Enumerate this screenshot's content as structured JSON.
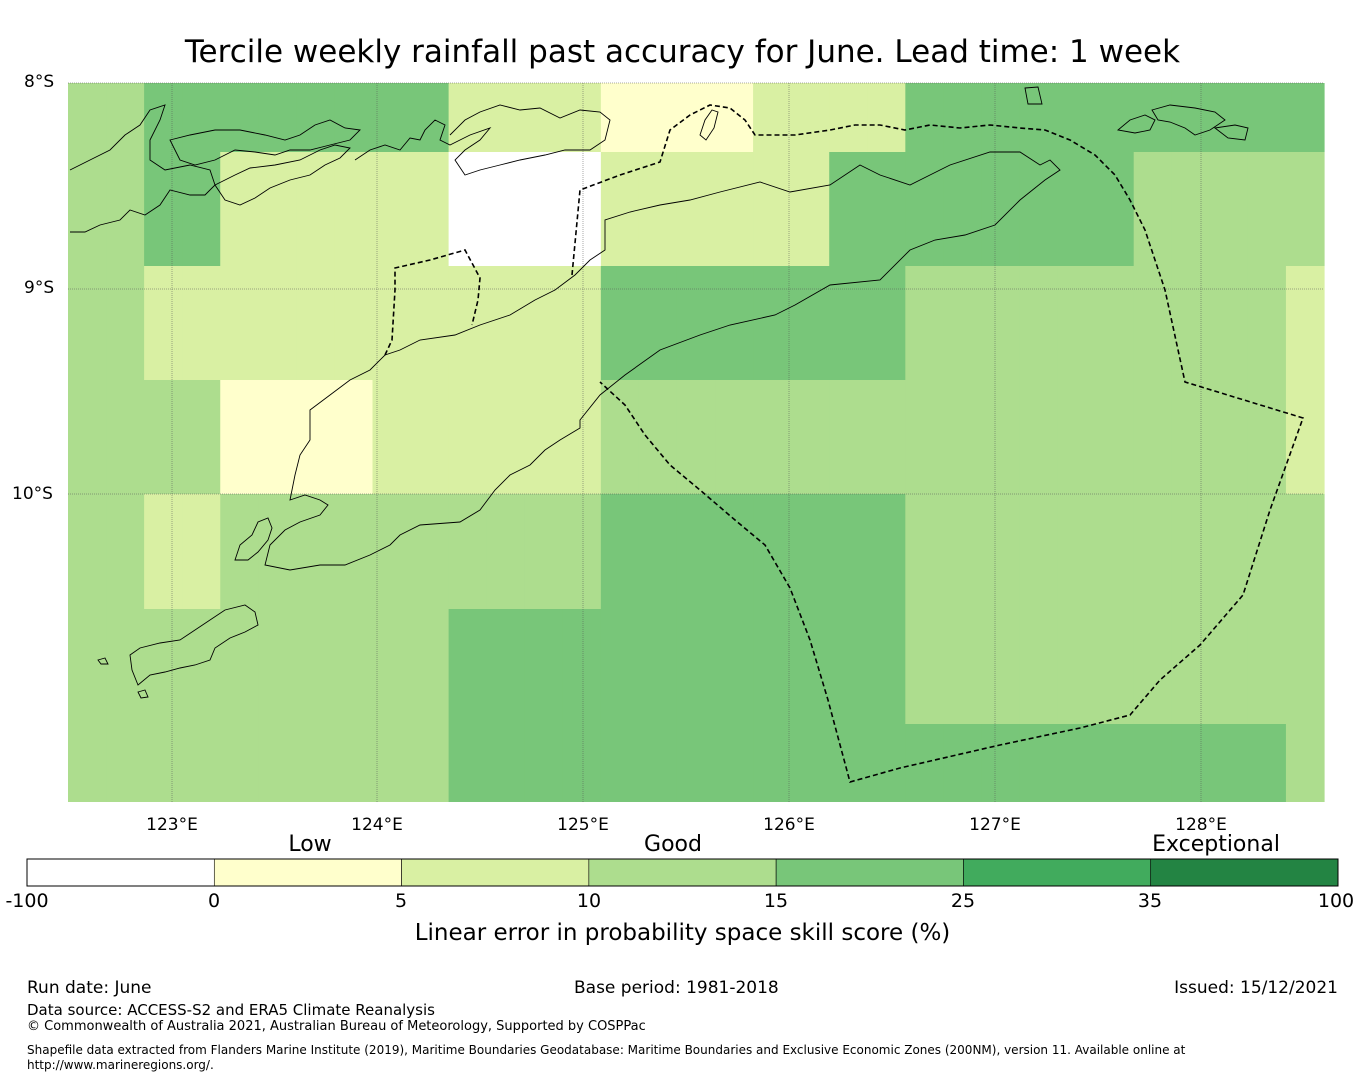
{
  "title": "Tercile weekly rainfall past accuracy for June. Lead time: 1 week",
  "map": {
    "lat_labels": [
      "8°S",
      "9°S",
      "10°S"
    ],
    "lon_labels": [
      "123°E",
      "124°E",
      "125°E",
      "126°E",
      "127°E",
      "128°E"
    ],
    "lat_range": [
      -11.5,
      -8.0
    ],
    "lon_range": [
      122.5,
      128.6
    ],
    "gridlines": true,
    "colors": [
      "#ffffff",
      "#ffffcc",
      "#d9f0a3",
      "#addd8e",
      "#78c679",
      "#41ab5d",
      "#238443"
    ],
    "cells": [
      [
        3,
        3,
        4,
        4,
        4,
        4,
        4,
        4,
        4,
        4,
        2,
        2,
        2,
        2,
        1,
        1,
        1,
        1,
        2,
        2,
        2,
        2,
        4,
        4,
        4,
        4,
        4,
        4,
        4,
        4,
        4,
        4,
        4
      ],
      [
        3,
        3,
        4,
        4,
        2,
        2,
        2,
        2,
        2,
        2,
        0,
        0,
        0,
        0,
        2,
        2,
        2,
        2,
        2,
        2,
        4,
        4,
        4,
        4,
        4,
        4,
        4,
        4,
        3,
        3,
        3,
        3,
        3
      ],
      [
        3,
        3,
        2,
        2,
        2,
        2,
        2,
        2,
        2,
        2,
        2,
        2,
        2,
        2,
        4,
        4,
        4,
        4,
        4,
        4,
        4,
        4,
        3,
        3,
        3,
        3,
        3,
        3,
        3,
        3,
        3,
        3,
        2
      ],
      [
        3,
        3,
        3,
        3,
        1,
        1,
        1,
        1,
        2,
        2,
        2,
        2,
        2,
        2,
        3,
        3,
        3,
        3,
        3,
        3,
        3,
        3,
        3,
        3,
        3,
        3,
        3,
        3,
        3,
        3,
        3,
        3,
        2
      ],
      [
        3,
        3,
        2,
        2,
        3,
        3,
        3,
        3,
        3,
        3,
        3,
        3,
        3,
        3,
        4,
        4,
        4,
        4,
        4,
        4,
        4,
        4,
        3,
        3,
        3,
        3,
        3,
        3,
        3,
        3,
        3,
        3,
        3
      ],
      [
        3,
        3,
        3,
        3,
        3,
        3,
        3,
        3,
        3,
        3,
        4,
        4,
        4,
        4,
        4,
        4,
        4,
        4,
        4,
        4,
        4,
        4,
        3,
        3,
        3,
        3,
        3,
        3,
        3,
        3,
        3,
        3,
        3
      ],
      [
        3,
        3,
        3,
        3,
        3,
        3,
        3,
        3,
        3,
        3,
        4,
        4,
        4,
        4,
        4,
        4,
        4,
        4,
        4,
        4,
        4,
        4,
        4,
        4,
        4,
        4,
        4,
        4,
        4,
        4,
        4,
        4,
        3
      ]
    ],
    "cell_rows_note": ""
  },
  "colorbar": {
    "categories": [
      {
        "label": "Low",
        "at": 2.5
      },
      {
        "label": "Good",
        "at": 4.5
      },
      {
        "label": "Exceptional",
        "at": 6.5
      }
    ],
    "ticks": [
      "-100",
      "0",
      "5",
      "10",
      "15",
      "25",
      "35",
      "100"
    ],
    "colors": [
      "#ffffff",
      "#ffffcc",
      "#d9f0a3",
      "#addd8e",
      "#78c679",
      "#41ab5d",
      "#238443"
    ],
    "label": "Linear error in probability space skill score (%)"
  },
  "footer": {
    "run_date": "Run date: June",
    "base_period": "Base period: 1981-2018",
    "issued": "Issued: 15/12/2021",
    "data_source": "Data source: ACCESS-S2 and ERA5 Climate Reanalysis",
    "copyright": "© Commonwealth of Australia 2021, Australian Bureau of Meteorology, Supported by COSPPac",
    "shapefile_line1": "Shapefile data extracted from Flanders Marine Institute (2019), Maritime Boundaries Geodatabase: Maritime Boundaries and Exclusive Economic Zones (200NM), version 11. Available online at",
    "shapefile_line2": "http://www.marineregions.org/."
  }
}
